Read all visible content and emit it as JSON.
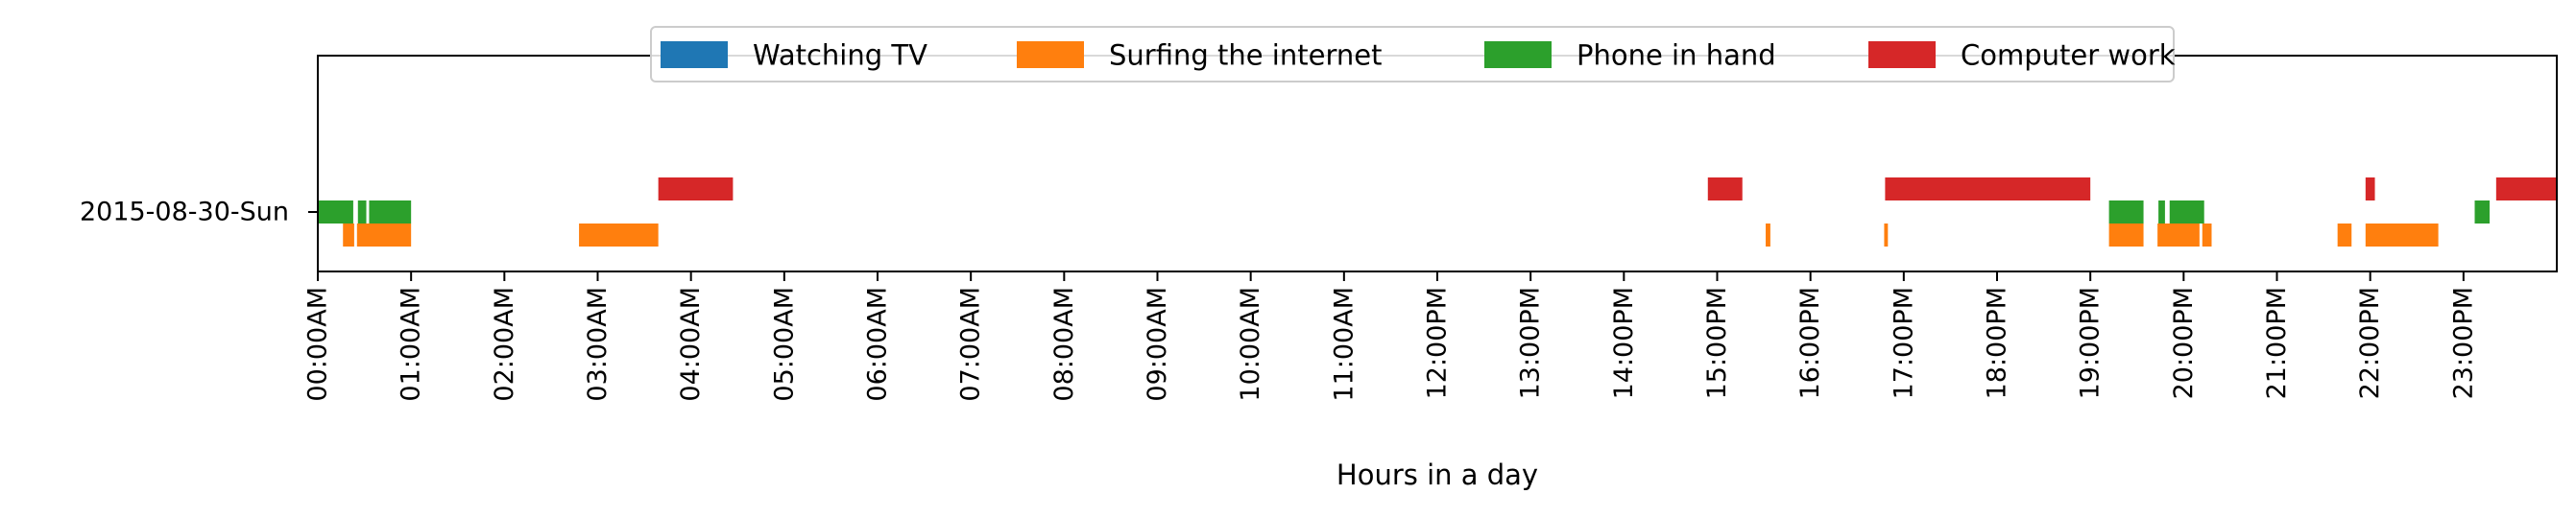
{
  "chart_data": {
    "type": "timeline",
    "title": "",
    "xlabel": "Hours in a day",
    "ylabel": "",
    "xlim_hours": [
      0,
      24
    ],
    "x_ticks": [
      "00:00AM",
      "01:00AM",
      "02:00AM",
      "03:00AM",
      "04:00AM",
      "05:00AM",
      "06:00AM",
      "07:00AM",
      "08:00AM",
      "09:00AM",
      "10:00AM",
      "11:00AM",
      "12:00PM",
      "13:00PM",
      "14:00PM",
      "15:00PM",
      "16:00PM",
      "17:00PM",
      "18:00PM",
      "19:00PM",
      "20:00PM",
      "21:00PM",
      "22:00PM",
      "23:00PM"
    ],
    "categories": [
      "2015-08-30-Sun"
    ],
    "grid": false,
    "legend_position": "top-center",
    "series": [
      {
        "name": "Watching TV",
        "color": "#1f77b4",
        "lane": 0,
        "intervals": []
      },
      {
        "name": "Surfing the internet",
        "color": "#ff7f0e",
        "lane": -1,
        "intervals": [
          [
            0.27,
            0.39
          ],
          [
            0.42,
            1.0
          ],
          [
            2.8,
            3.65
          ],
          [
            15.52,
            15.57
          ],
          [
            16.79,
            16.83
          ],
          [
            19.2,
            19.57
          ],
          [
            19.72,
            20.17
          ],
          [
            20.2,
            20.3
          ],
          [
            21.65,
            21.8
          ],
          [
            21.95,
            22.73
          ]
        ]
      },
      {
        "name": "Phone in hand",
        "color": "#2ca02c",
        "lane": 0,
        "intervals": [
          [
            0.0,
            0.38
          ],
          [
            0.43,
            0.52
          ],
          [
            0.55,
            1.0
          ],
          [
            19.2,
            19.57
          ],
          [
            19.73,
            19.8
          ],
          [
            19.85,
            20.22
          ],
          [
            23.12,
            23.28
          ]
        ]
      },
      {
        "name": "Computer work",
        "color": "#d62728",
        "lane": 1,
        "intervals": [
          [
            3.65,
            4.45
          ],
          [
            14.9,
            15.27
          ],
          [
            16.8,
            19.0
          ],
          [
            21.95,
            22.05
          ],
          [
            23.35,
            24.0
          ]
        ]
      }
    ]
  }
}
